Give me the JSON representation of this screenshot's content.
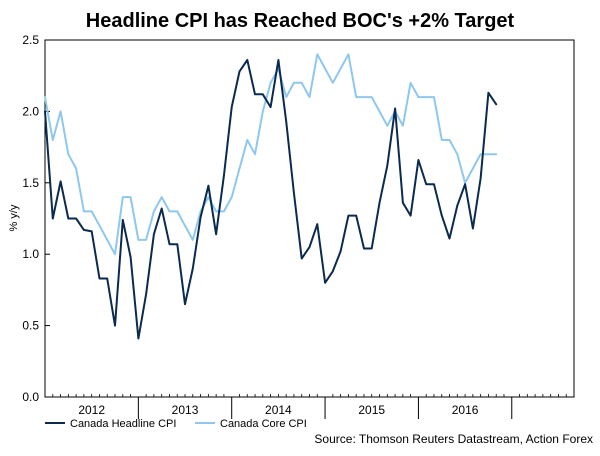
{
  "chart_data": {
    "type": "line",
    "title": "Headline CPI has Reached BOC's +2% Target",
    "ylabel": "% y/y",
    "xlabel": "",
    "ylim": [
      0.0,
      2.5
    ],
    "ytick_labels": [
      "0.0",
      "0.5",
      "1.0",
      "1.5",
      "2.0",
      "2.5"
    ],
    "yticks": [
      0.0,
      0.5,
      1.0,
      1.5,
      2.0,
      2.5
    ],
    "xlim": [
      0,
      68
    ],
    "year_labels": [
      "2012",
      "2013",
      "2014",
      "2015",
      "2016"
    ],
    "year_label_positions": [
      6,
      18,
      30,
      42,
      54
    ],
    "year_boundaries": [
      12,
      24,
      36,
      48,
      60
    ],
    "grid": false,
    "legend_position": "bottom-left",
    "source": "Source: Thomson Reuters Datastream, Action Forex",
    "series": [
      {
        "name": "Canada Headline CPI",
        "color": "#0a2a4f",
        "x": [
          0,
          1,
          2,
          3,
          4,
          5,
          6,
          7,
          8,
          9,
          10,
          11,
          12,
          13,
          14,
          15,
          16,
          17,
          18,
          19,
          20,
          21,
          22,
          23,
          24,
          25,
          26,
          27,
          28,
          29,
          30,
          31,
          32,
          33,
          34,
          35,
          36,
          37,
          38,
          39,
          40,
          41,
          42,
          43,
          44,
          45,
          46,
          47,
          48,
          49,
          50,
          51,
          52,
          53,
          54,
          55,
          56,
          57,
          58,
          59,
          60,
          61,
          62
        ],
        "values": [
          2.0,
          1.25,
          1.51,
          1.25,
          1.25,
          1.17,
          1.16,
          0.83,
          0.83,
          0.5,
          1.24,
          0.98,
          0.41,
          0.72,
          1.14,
          1.32,
          1.07,
          1.07,
          0.65,
          0.9,
          1.26,
          1.48,
          1.14,
          1.55,
          2.03,
          2.28,
          2.36,
          2.12,
          2.12,
          2.03,
          2.36,
          1.93,
          1.43,
          0.97,
          1.05,
          1.21,
          0.8,
          0.88,
          1.02,
          1.27,
          1.27,
          1.04,
          1.04,
          1.36,
          1.62,
          2.02,
          1.36,
          1.27,
          1.66,
          1.49,
          1.49,
          1.27,
          1.11,
          1.34,
          1.49,
          1.18,
          1.53,
          2.13,
          2.05,
          null,
          null,
          null,
          null
        ]
      },
      {
        "name": "Canada Core CPI",
        "color": "#8ec8ee",
        "x": [
          0,
          1,
          2,
          3,
          4,
          5,
          6,
          7,
          8,
          9,
          10,
          11,
          12,
          13,
          14,
          15,
          16,
          17,
          18,
          19,
          20,
          21,
          22,
          23,
          24,
          25,
          26,
          27,
          28,
          29,
          30,
          31,
          32,
          33,
          34,
          35,
          36,
          37,
          38,
          39,
          40,
          41,
          42,
          43,
          44,
          45,
          46,
          47,
          48,
          49,
          50,
          51,
          52,
          53,
          54,
          55,
          56,
          57,
          58
        ],
        "values": [
          2.1,
          1.8,
          2.0,
          1.7,
          1.6,
          1.3,
          1.3,
          1.2,
          1.1,
          1.0,
          1.4,
          1.4,
          1.1,
          1.1,
          1.3,
          1.4,
          1.3,
          1.3,
          1.2,
          1.1,
          1.3,
          1.4,
          1.3,
          1.3,
          1.4,
          1.6,
          1.8,
          1.7,
          2.0,
          2.2,
          2.3,
          2.1,
          2.2,
          2.2,
          2.1,
          2.4,
          2.3,
          2.2,
          2.3,
          2.4,
          2.1,
          2.1,
          2.1,
          2.0,
          1.9,
          2.0,
          1.9,
          2.2,
          2.1,
          2.1,
          2.1,
          1.8,
          1.8,
          1.7,
          1.5,
          1.6,
          1.7,
          1.7,
          1.7
        ]
      }
    ]
  }
}
